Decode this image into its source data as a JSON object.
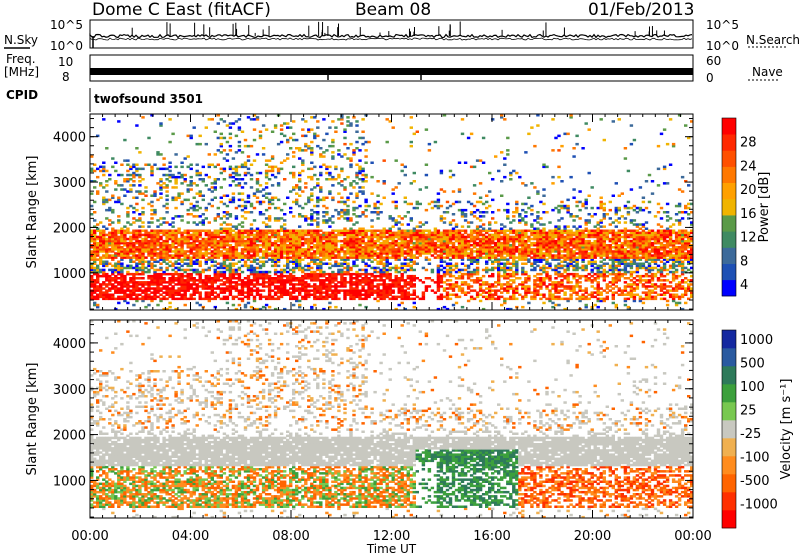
{
  "header": {
    "station": "Dome C East (fitACF)",
    "beam": "Beam 08",
    "date": "01/Feb/2013"
  },
  "panels": {
    "nsky": {
      "label": "N.Sky",
      "ticks": [
        "10^5",
        "10^0"
      ],
      "right_label": "N.Search",
      "right_ticks": [
        "10^5",
        "10^0"
      ]
    },
    "freq": {
      "label_line1": "Freq.",
      "label_line2": "[MHz]",
      "ticks": [
        "10",
        "8"
      ],
      "right_label": "Nave",
      "right_ticks": [
        "60",
        "0"
      ]
    },
    "cpid": {
      "label": "CPID",
      "value": "twofsound 3501"
    }
  },
  "chart_data": [
    {
      "type": "heatmap",
      "title": "Power",
      "ylabel": "Slant Range [km]",
      "xlabel": "Time UT",
      "colorbar_label": "Power [dB]",
      "ylim": [
        180,
        4500
      ],
      "yticks": [
        1000,
        2000,
        3000,
        4000
      ],
      "xticks": [
        "00:00",
        "04:00",
        "08:00",
        "12:00",
        "16:00",
        "20:00",
        "00:00"
      ],
      "colorbar_ticks": [
        4,
        8,
        12,
        16,
        20,
        24,
        28
      ],
      "colorbar_colors": [
        "#0000ff",
        "#1e50b4",
        "#3c6a9a",
        "#3f8a62",
        "#5a9a48",
        "#f0b400",
        "#ffa000",
        "#ff7800",
        "#ff5000",
        "#ff2800",
        "#ff0000"
      ]
    },
    {
      "type": "heatmap",
      "title": "Velocity",
      "ylabel": "Slant Range [km]",
      "xlabel": "Time UT",
      "colorbar_label": "Velocity [m s^-1]",
      "ylim": [
        180,
        4500
      ],
      "yticks": [
        1000,
        2000,
        3000,
        4000
      ],
      "xticks": [
        "00:00",
        "04:00",
        "08:00",
        "12:00",
        "16:00",
        "20:00",
        "00:00"
      ],
      "colorbar_ticks": [
        1000,
        500,
        100,
        25,
        -25,
        -100,
        -500,
        -1000
      ],
      "colorbar_colors": [
        "#1428a0",
        "#2a5aa0",
        "#2e7a5a",
        "#3ca03c",
        "#78c850",
        "#c8c8c0",
        "#f0b050",
        "#ff8c1e",
        "#ff6400",
        "#ff3000",
        "#ff0000"
      ]
    }
  ]
}
